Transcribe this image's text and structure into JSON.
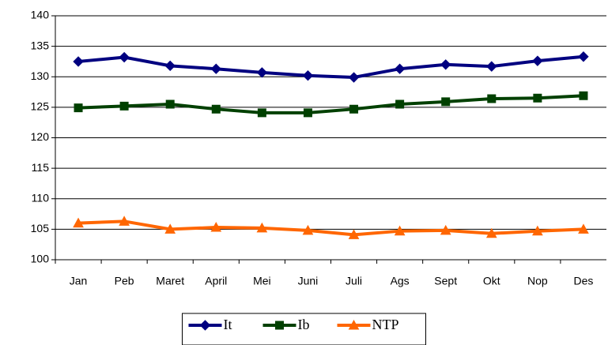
{
  "chart_data": {
    "type": "line",
    "categories": [
      "Jan",
      "Peb",
      "Maret",
      "April",
      "Mei",
      "Juni",
      "Juli",
      "Ags",
      "Sept",
      "Okt",
      "Nop",
      "Des"
    ],
    "series": [
      {
        "name": "It",
        "color": "#000080",
        "marker": "diamond",
        "values": [
          132.5,
          133.2,
          131.8,
          131.3,
          130.7,
          130.2,
          129.9,
          131.3,
          132.0,
          131.7,
          132.6,
          133.3
        ]
      },
      {
        "name": "Ib",
        "color": "#004000",
        "marker": "square",
        "values": [
          124.9,
          125.2,
          125.5,
          124.7,
          124.1,
          124.1,
          124.7,
          125.5,
          125.9,
          126.4,
          126.5,
          126.9
        ]
      },
      {
        "name": "NTP",
        "color": "#ff6600",
        "marker": "triangle",
        "values": [
          106.0,
          106.3,
          105.0,
          105.3,
          105.2,
          104.8,
          104.1,
          104.7,
          104.8,
          104.3,
          104.7,
          105.0
        ]
      }
    ],
    "ylim": [
      100,
      140
    ],
    "yticks": [
      100,
      105,
      110,
      115,
      120,
      125,
      130,
      135,
      140
    ],
    "grid": true,
    "legend": "bottom"
  }
}
